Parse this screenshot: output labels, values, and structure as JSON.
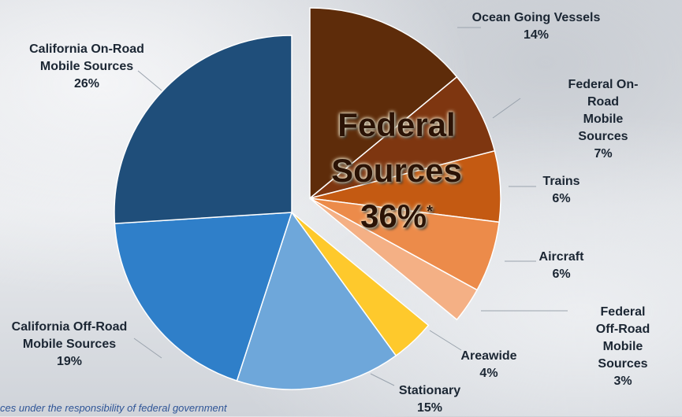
{
  "chart_data": {
    "type": "pie",
    "categories": [
      "Ocean Going Vessels",
      "Federal On-Road\nMobile Sources",
      "Trains",
      "Aircraft",
      "Federal Off-Road\nMobile Sources",
      "Areawide",
      "Stationary",
      "California Off-Road\nMobile Sources",
      "California On-Road\nMobile Sources"
    ],
    "values": [
      14,
      7,
      6,
      6,
      3,
      4,
      15,
      19,
      26
    ],
    "value_labels": [
      "14%",
      "7%",
      "6%",
      "6%",
      "3%",
      "4%",
      "15%",
      "19%",
      "26%"
    ],
    "colors": [
      "#5e2c0a",
      "#7e3610",
      "#c45a12",
      "#ec8b4a",
      "#f4b085",
      "#fec92c",
      "#6ea7da",
      "#2f7fc9",
      "#1f4e7a"
    ],
    "annotation": {
      "lines": [
        "Federal",
        "Sources"
      ],
      "total": "36%",
      "mark": "*"
    },
    "footnote": "ces under the responsibility of federal government"
  }
}
